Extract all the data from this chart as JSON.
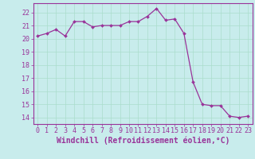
{
  "x": [
    0,
    1,
    2,
    3,
    4,
    5,
    6,
    7,
    8,
    9,
    10,
    11,
    12,
    13,
    14,
    15,
    16,
    17,
    18,
    19,
    20,
    21,
    22,
    23
  ],
  "y": [
    20.2,
    20.4,
    20.7,
    20.2,
    21.3,
    21.3,
    20.9,
    21.0,
    21.0,
    21.0,
    21.3,
    21.3,
    21.7,
    22.3,
    21.4,
    21.5,
    20.4,
    16.7,
    15.0,
    14.9,
    14.9,
    14.1,
    14.0,
    14.1
  ],
  "line_color": "#993399",
  "marker": "D",
  "marker_size": 2.0,
  "background_color": "#c8ecec",
  "grid_color": "#aaddcc",
  "xlabel": "Windchill (Refroidissement éolien,°C)",
  "xlim": [
    -0.5,
    23.5
  ],
  "ylim": [
    13.5,
    22.7
  ],
  "yticks": [
    14,
    15,
    16,
    17,
    18,
    19,
    20,
    21,
    22
  ],
  "xticks": [
    0,
    1,
    2,
    3,
    4,
    5,
    6,
    7,
    8,
    9,
    10,
    11,
    12,
    13,
    14,
    15,
    16,
    17,
    18,
    19,
    20,
    21,
    22,
    23
  ],
  "tick_color": "#993399",
  "label_color": "#993399",
  "spine_color": "#993399",
  "tick_fontsize": 6.0,
  "xlabel_fontsize": 7.0
}
